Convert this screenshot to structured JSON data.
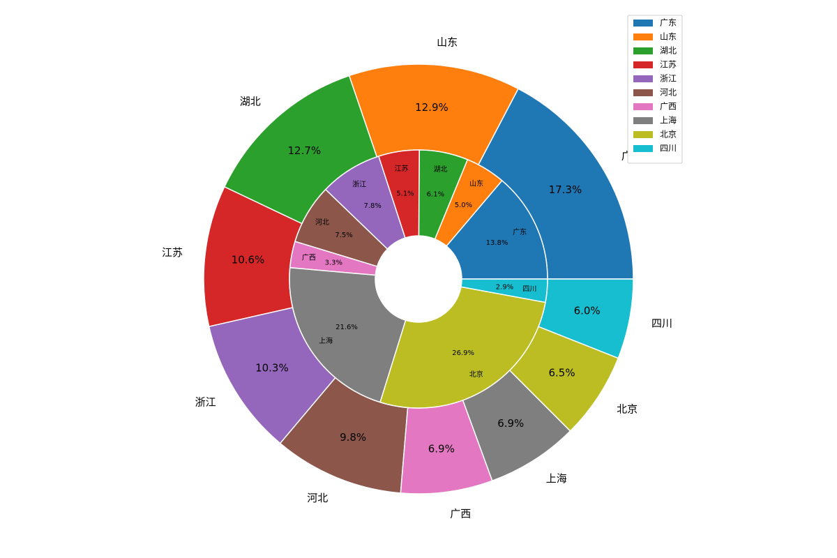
{
  "chart_data": {
    "type": "nested-pie",
    "categories": [
      "广东",
      "山东",
      "湖北",
      "江苏",
      "浙江",
      "河北",
      "广西",
      "上海",
      "北京",
      "四川"
    ],
    "colors": [
      "#1f77b4",
      "#ff7f0e",
      "#2ca02c",
      "#d62728",
      "#9467bd",
      "#8c564b",
      "#e377c2",
      "#7f7f7f",
      "#bcbd22",
      "#17becf"
    ],
    "rings": [
      {
        "values": [
          17.3,
          12.9,
          12.7,
          10.6,
          10.3,
          9.8,
          6.9,
          6.9,
          6.5,
          6.0
        ],
        "value_labels": [
          "17.3%",
          "12.9%",
          "12.7%",
          "10.6%",
          "10.3%",
          "9.8%",
          "6.9%",
          "6.9%",
          "6.5%",
          "6.0%"
        ]
      },
      {
        "values": [
          13.8,
          5.0,
          6.1,
          5.1,
          7.8,
          7.5,
          3.3,
          21.6,
          26.9,
          2.9
        ],
        "value_labels": [
          "13.8%",
          "5.0%",
          "6.1%",
          "5.1%",
          "7.8%",
          "7.5%",
          "3.3%",
          "21.6%",
          "26.9%",
          "2.9%"
        ]
      }
    ],
    "legend": "upper right"
  }
}
